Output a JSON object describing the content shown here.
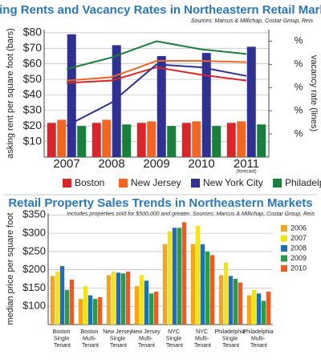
{
  "chart_data": [
    {
      "type": "bar-line",
      "title": "Asking Rents and Vacancy Rates in Northeastern Retail Markets",
      "subtitle": "Sources: Marcus & Millichap, Costar Group, Reis",
      "y_label": "asking rent per square foot (bars)",
      "y2_label": "vacancy rate (lines)",
      "annotation": "(forecast)",
      "categories": [
        "2007",
        "2008",
        "2009",
        "2010",
        "2011"
      ],
      "series": [
        {
          "name": "Boston",
          "color": "#d9262b",
          "values": [
            22,
            22,
            22,
            22,
            22
          ],
          "line_values": [
            6.4,
            6.6,
            7.75,
            7.1,
            6.6
          ]
        },
        {
          "name": "New Jersey",
          "color": "#f26522",
          "values": [
            24,
            24,
            23,
            23,
            23
          ],
          "line_values": [
            6.6,
            6.9,
            8.3,
            8.3,
            8.2
          ]
        },
        {
          "name": "New York City",
          "color": "#2e3192",
          "values": [
            79,
            72,
            65,
            67,
            71
          ],
          "line_values": [
            2.7,
            4.7,
            8.0,
            7.75,
            7.0
          ]
        },
        {
          "name": "Philadelphia",
          "color": "#1a7f3c",
          "values": [
            20,
            21,
            20,
            20,
            21
          ],
          "line_values": [
            7.6,
            8.6,
            10.0,
            9.3,
            8.9
          ]
        }
      ],
      "ylim": [
        0,
        82
      ],
      "yticks": [
        {
          "value": 10,
          "label": "$10"
        },
        {
          "value": 20,
          "label": "$20"
        },
        {
          "value": 30,
          "label": "$30"
        },
        {
          "value": 40,
          "label": "$40"
        },
        {
          "value": 50,
          "label": "$50"
        },
        {
          "value": 60,
          "label": "$60"
        },
        {
          "value": 70,
          "label": "$70"
        },
        {
          "value": 80,
          "label": "$80"
        }
      ],
      "y2lim": [
        0,
        11
      ],
      "y2ticks": [
        {
          "value": 2,
          "label": "%"
        },
        {
          "value": 4,
          "label": "%"
        },
        {
          "value": 6,
          "label": "%"
        },
        {
          "value": 8,
          "label": "%"
        },
        {
          "value": 10,
          "label": "%"
        }
      ],
      "grid": true
    },
    {
      "type": "bar",
      "title": "Retail Property Sales Trends in Northeastern Markets",
      "subtitle": "Includes properties sold for $500,000 and greater. Sources: Marcus & Millichap, Costar Group, Reis",
      "y_label": "median price per square foot",
      "categories": [
        "Boston Single Tenant",
        "Boston Multi- Tenant",
        "New Jersey Single Tenant",
        "New Jersey Multi- Tenant",
        "NYC Single Tenant",
        "NYC Multi- Tenant",
        "Philadelphia Single Tenant",
        "Philadelphia Multi- Tenant"
      ],
      "series": [
        {
          "name": "2006",
          "color": "#f3a51f",
          "values": [
            183,
            120,
            185,
            155,
            270,
            270,
            185,
            130
          ]
        },
        {
          "name": "2007",
          "color": "#f5e31a",
          "values": [
            195,
            155,
            195,
            185,
            305,
            320,
            220,
            145
          ]
        },
        {
          "name": "2008",
          "color": "#1f6fb5",
          "values": [
            210,
            130,
            192,
            170,
            315,
            270,
            183,
            135
          ]
        },
        {
          "name": "2009",
          "color": "#2a9a49",
          "values": [
            145,
            120,
            190,
            135,
            315,
            250,
            175,
            115
          ]
        },
        {
          "name": "2010",
          "color": "#ee5a24",
          "values": [
            173,
            125,
            195,
            140,
            330,
            240,
            165,
            140
          ]
        }
      ],
      "ylim": [
        50,
        355
      ],
      "yticks": [
        {
          "value": 100,
          "label": "$100"
        },
        {
          "value": 150,
          "label": "$150"
        },
        {
          "value": 200,
          "label": "$200"
        },
        {
          "value": 250,
          "label": "$250"
        },
        {
          "value": 300,
          "label": "$300"
        },
        {
          "value": 350,
          "label": "$350"
        }
      ],
      "grid": true
    }
  ]
}
